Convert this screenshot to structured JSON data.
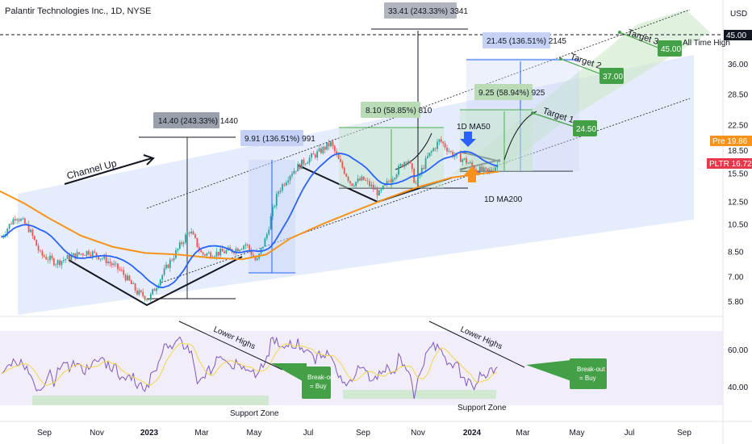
{
  "header": {
    "title": "Palantir Technologies Inc., 1D, NYSE"
  },
  "currency": "USD",
  "chart_data": {
    "type": "candlestick",
    "price_axis": {
      "scale": "log",
      "ticks": [
        "36.00",
        "28.50",
        "22.50",
        "18.50",
        "15.50",
        "12.50",
        "10.50",
        "8.50",
        "7.00",
        "5.80"
      ],
      "tick_values": [
        36,
        28.5,
        22.5,
        18.5,
        15.5,
        12.5,
        10.5,
        8.5,
        7,
        5.8
      ]
    },
    "time_axis": {
      "ticks": [
        "Sep",
        "Nov",
        "2023",
        "Mar",
        "May",
        "Jul",
        "Sep",
        "Nov",
        "2024",
        "Mar",
        "May",
        "Jul",
        "Sep"
      ]
    },
    "rsi_axis": {
      "ticks": [
        "60.00",
        "40.00"
      ],
      "tick_values": [
        60,
        40
      ]
    },
    "price_labels": [
      {
        "text": "45.00",
        "color": "#131722",
        "value": 45
      },
      {
        "text": "Pre  19.86",
        "color": "#f7931a",
        "value": 19.86
      },
      {
        "text": "PLTR  16.72",
        "color": "#e8394a",
        "value": 16.72
      }
    ],
    "measure_boxes": [
      {
        "text": "14.40 (243.33%) 1440",
        "color": "#5d606b"
      },
      {
        "text": "9.91 (136.51%) 991",
        "color": "#2962ff"
      },
      {
        "text": "8.10 (58.85%) 810",
        "color": "#4caf50"
      },
      {
        "text": "33.41 (243.33%) 3341",
        "color": "#5d606b"
      },
      {
        "text": "21.45 (136.51%) 2145",
        "color": "#2962ff"
      },
      {
        "text": "9.25 (58.94%) 925",
        "color": "#4caf50"
      }
    ],
    "targets": [
      {
        "name": "Target 1",
        "value": "24.50"
      },
      {
        "name": "Target 2",
        "value": "37.00"
      },
      {
        "name": "Target 3",
        "value": "45.00"
      }
    ],
    "annotations": {
      "channel_up": "Channel Up",
      "all_time_high": "All Time High",
      "ma50": "1D MA50",
      "ma200": "1D MA200",
      "lower_highs_1": "Lower Highs",
      "lower_highs_2": "Lower Highs",
      "breakout_1": "Break-out\n= Buy",
      "breakout_2": "Break-out\n= Buy",
      "support_zone_1": "Support Zone",
      "support_zone_2": "Support Zone"
    },
    "colors": {
      "ma50": "#2962ff",
      "ma200": "#f7931a",
      "up": "#26a69a",
      "down": "#ef5350",
      "rsi": "#7e57c2",
      "rsi_ma": "#f2d64b",
      "target": "#43a047"
    }
  }
}
